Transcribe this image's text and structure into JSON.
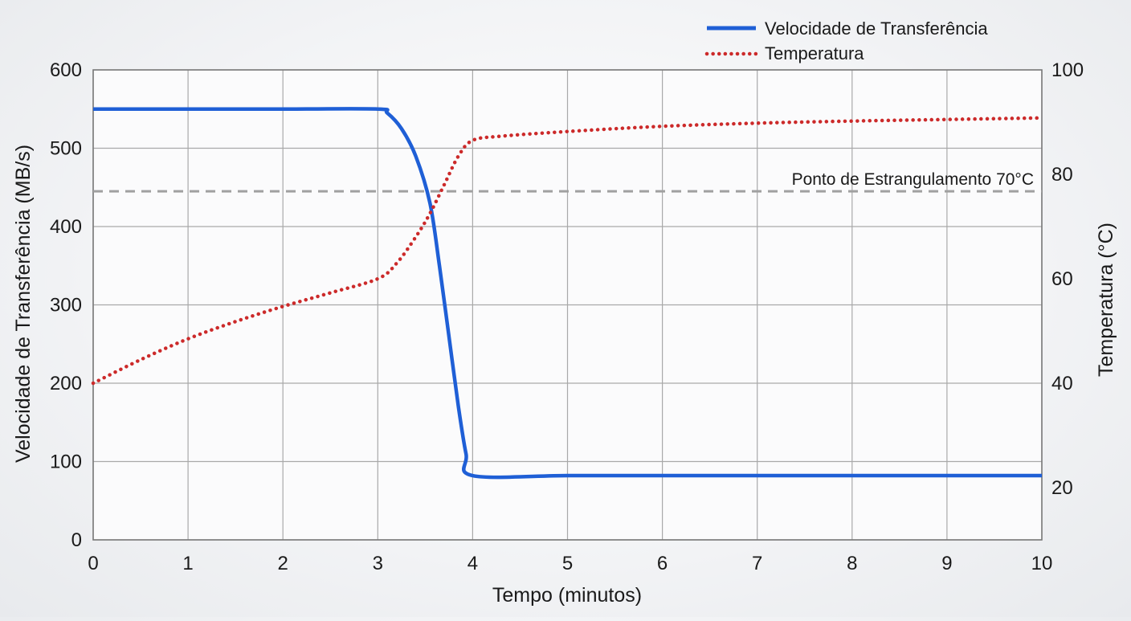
{
  "chart_data": {
    "type": "line",
    "title": "",
    "xlabel": "Tempo (minutos)",
    "ylabel_left": "Velocidade de Transferência (MB/s)",
    "ylabel_right": "Temperatura (°C)",
    "xlim": [
      0,
      10
    ],
    "ylim_left": [
      0,
      600
    ],
    "ylim_right": [
      10,
      100
    ],
    "x_ticks": [
      "0",
      "1",
      "2",
      "3",
      "4",
      "5",
      "6",
      "7",
      "8",
      "9",
      "10"
    ],
    "y_left_ticks": [
      "0",
      "100",
      "200",
      "300",
      "400",
      "500",
      "600"
    ],
    "y_right_ticks": [
      "20",
      "40",
      "60",
      "80",
      "100"
    ],
    "grid": true,
    "legend_position": "top-right",
    "series": [
      {
        "name": "Velocidade de Transferência",
        "axis": "left",
        "style": "solid",
        "color": "#1f5fd6",
        "x": [
          0,
          1,
          2,
          3,
          3.1,
          3.25,
          3.4,
          3.55,
          3.65,
          3.75,
          3.85,
          3.93,
          4.0,
          5,
          6,
          7,
          8,
          9,
          10
        ],
        "y": [
          550,
          550,
          550,
          550,
          545,
          525,
          490,
          430,
          350,
          260,
          170,
          110,
          82,
          82,
          82,
          82,
          82,
          82,
          82
        ]
      },
      {
        "name": "Temperatura",
        "axis": "right",
        "style": "dotted",
        "color": "#cc2a2a",
        "x": [
          0,
          0.5,
          1,
          1.5,
          2,
          2.5,
          3,
          3.2,
          3.4,
          3.55,
          3.7,
          3.85,
          4.0,
          4.3,
          5,
          6,
          7,
          8,
          9,
          10
        ],
        "y": [
          40,
          44.5,
          48.5,
          51.8,
          54.7,
          57.3,
          60,
          63,
          68,
          72.5,
          78,
          83.5,
          86.5,
          87.3,
          88.2,
          89.2,
          89.8,
          90.2,
          90.5,
          90.8
        ]
      }
    ],
    "reference_line": {
      "label": "Ponto de Estrangulamento 70°C",
      "axis": "left",
      "value": 445,
      "color": "#a0a0a0",
      "style": "dashed"
    }
  }
}
